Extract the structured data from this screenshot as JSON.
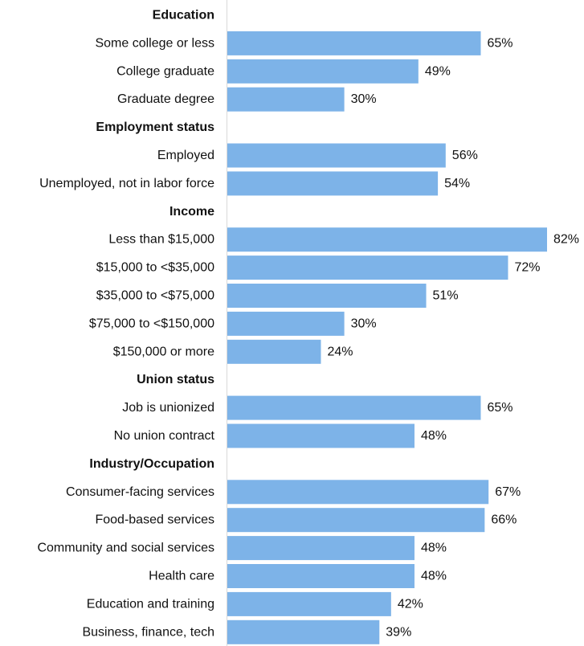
{
  "chart_data": {
    "type": "bar",
    "orientation": "horizontal",
    "title": "",
    "xlabel": "",
    "ylabel": "",
    "value_suffix": "%",
    "xlim": [
      0,
      82
    ],
    "grid": false,
    "legend": "none",
    "bar_color": "#7db3e8",
    "groups": [
      {
        "title": "Education",
        "categories": [
          "Some college or less",
          "College graduate",
          "Graduate degree"
        ],
        "values": [
          65,
          49,
          30
        ]
      },
      {
        "title": "Employment status",
        "categories": [
          "Employed",
          "Unemployed, not in labor force"
        ],
        "values": [
          56,
          54
        ]
      },
      {
        "title": "Income",
        "categories": [
          "Less than $15,000",
          "$15,000 to <$35,000",
          "$35,000 to <$75,000",
          "$75,000 to <$150,000",
          "$150,000 or more"
        ],
        "values": [
          82,
          72,
          51,
          30,
          24
        ]
      },
      {
        "title": "Union status",
        "categories": [
          "Job is unionized",
          "No union contract"
        ],
        "values": [
          65,
          48
        ]
      },
      {
        "title": "Industry/Occupation",
        "categories": [
          "Consumer-facing services",
          "Food-based services",
          "Community and social services",
          "Health care",
          "Education and training",
          "Business, finance, tech"
        ],
        "values": [
          67,
          66,
          48,
          48,
          42,
          39
        ]
      }
    ]
  }
}
